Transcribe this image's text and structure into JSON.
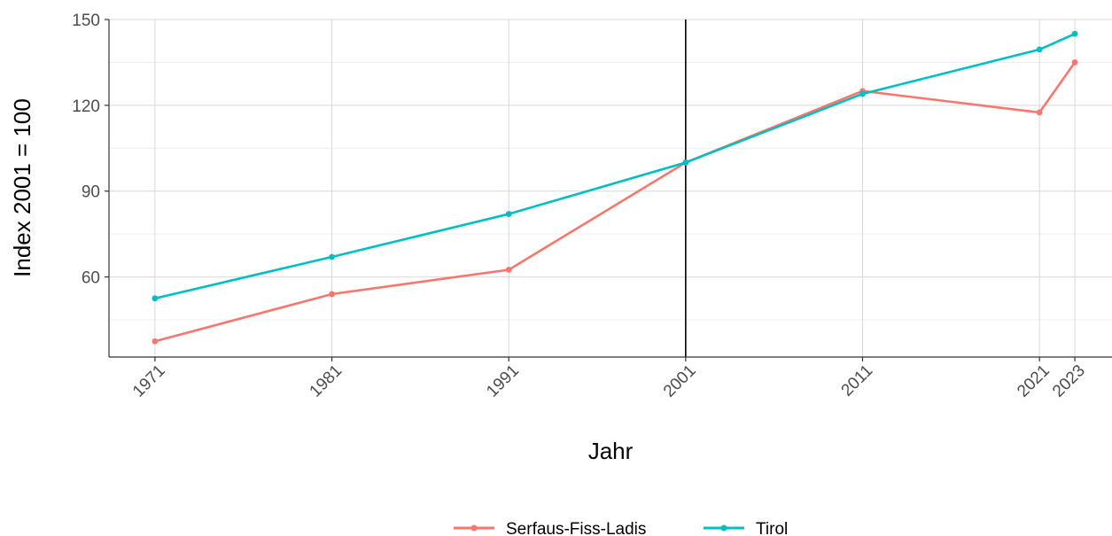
{
  "chart_data": {
    "type": "line",
    "x": [
      1971,
      1981,
      1991,
      2001,
      2011,
      2021,
      2023
    ],
    "x_tick_labels": [
      "1971",
      "1981",
      "1991",
      "2001",
      "2011",
      "2021",
      "2023"
    ],
    "xlabel": "Jahr",
    "ylabel": "Index 2001 = 100",
    "ylim": [
      32,
      150
    ],
    "xlim": [
      1968.4,
      2025.1
    ],
    "y_ticks": [
      60,
      90,
      120,
      150
    ],
    "y_tick_labels": [
      "60",
      "90",
      "120",
      "150"
    ],
    "y_minor_ticks": [
      45,
      75,
      105,
      135
    ],
    "grid": true,
    "reference_line_x": 2001,
    "legend_position": "bottom",
    "series": [
      {
        "name": "Serfaus-Fiss-Ladis",
        "color": "#F8766D",
        "values": [
          37.5,
          54,
          62.5,
          100,
          125,
          117.5,
          135
        ]
      },
      {
        "name": "Tirol",
        "color": "#00BFC4",
        "values": [
          52.5,
          67,
          82,
          100,
          124,
          139.5,
          145
        ]
      }
    ]
  }
}
